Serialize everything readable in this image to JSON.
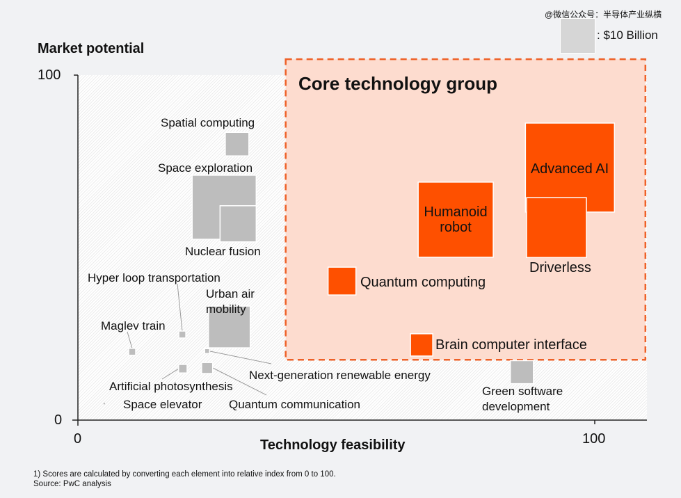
{
  "watermark": "@微信公众号：半导体产业纵横",
  "legend": {
    "label": ": $10 Billion",
    "reference_value_billion": 10,
    "color": "#d6d6d6"
  },
  "footnotes": [
    "1) Scores are calculated by converting each element into relative index from 0 to 100.",
    "Source: PwC analysis"
  ],
  "chart_data": {
    "type": "scatter",
    "marker": "square-sized-by-value",
    "xlabel": "Technology feasibility",
    "ylabel": "Market potential",
    "xlim": [
      0,
      100
    ],
    "ylim": [
      0,
      100
    ],
    "x_ticks": [
      "0",
      "100"
    ],
    "y_ticks": [
      "0",
      "100"
    ],
    "grid": false,
    "colors": {
      "core": "#fe5000",
      "other": "#bdbdbd",
      "group_fill": "#fddccf",
      "group_border": "#ee6128"
    },
    "group": {
      "title": "Core technology group",
      "x_range": [
        40.2,
        109.8
      ],
      "y_range": [
        17.5,
        104.6
      ]
    },
    "points": [
      {
        "name": "Space exploration",
        "x": 28.3,
        "y": 61.7,
        "value_billion": 33.9,
        "core": false
      },
      {
        "name": "Nuclear fusion",
        "x": 31.0,
        "y": 56.9,
        "value_billion": 10.8,
        "core": false
      },
      {
        "name": "Spatial computing",
        "x": 30.8,
        "y": 80.0,
        "value_billion": 4.6,
        "core": false
      },
      {
        "name": "Urban air mobility",
        "x": 29.3,
        "y": 27.0,
        "value_billion": 14.4,
        "core": false
      },
      {
        "name": "Hyper loop transportation",
        "x": 20.2,
        "y": 24.8,
        "value_billion": 0.4,
        "core": false
      },
      {
        "name": "Maglev train",
        "x": 10.5,
        "y": 19.8,
        "value_billion": 0.4,
        "core": false
      },
      {
        "name": "Artificial photosynthesis",
        "x": 20.3,
        "y": 14.9,
        "value_billion": 0.6,
        "core": false
      },
      {
        "name": "Quantum communication",
        "x": 25.0,
        "y": 15.1,
        "value_billion": 1.0,
        "core": false
      },
      {
        "name": "Next-generation renewable energy",
        "x": 25.0,
        "y": 20.0,
        "value_billion": 0.2,
        "core": false
      },
      {
        "name": "Space elevator",
        "x": 5.1,
        "y": 4.8,
        "value_billion": 0.02,
        "core": false
      },
      {
        "name": "Green software development",
        "x": 85.9,
        "y": 13.9,
        "value_billion": 4.4,
        "core": false
      },
      {
        "name": "Quantum computing",
        "x": 51.1,
        "y": 40.3,
        "value_billion": 6.4,
        "core": true
      },
      {
        "name": "Brain computer interface",
        "x": 66.5,
        "y": 21.8,
        "value_billion": 4.1,
        "core": true
      },
      {
        "name": "Humanoid robot",
        "x": 73.1,
        "y": 58.1,
        "value_billion": 46.6,
        "core": true
      },
      {
        "name": "Advanced AI",
        "x": 95.2,
        "y": 73.2,
        "value_billion": 65.5,
        "core": true
      },
      {
        "name": "Driverless",
        "x": 92.6,
        "y": 55.8,
        "value_billion": 29.6,
        "core": true
      }
    ]
  }
}
